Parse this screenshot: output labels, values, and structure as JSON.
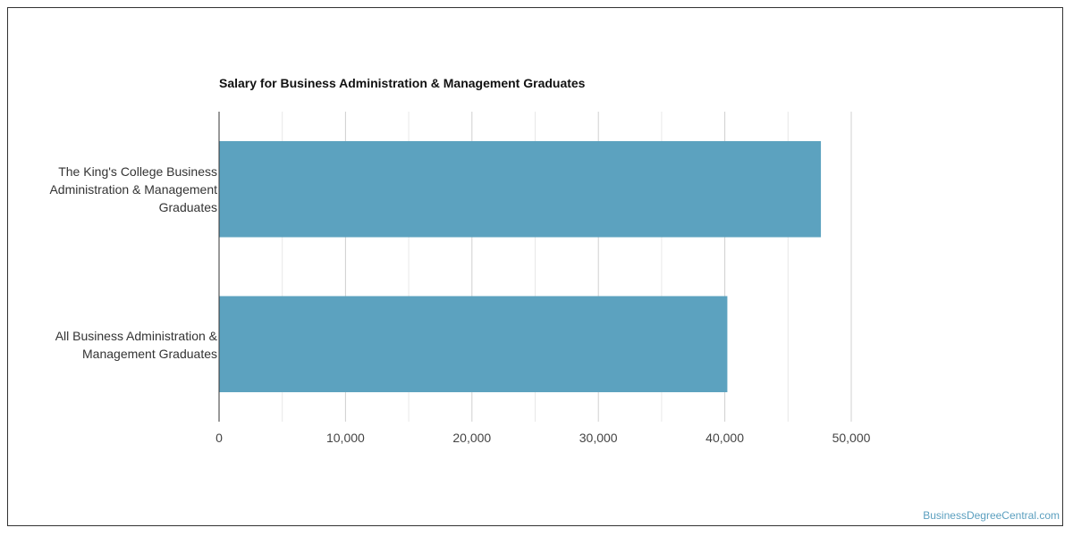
{
  "chart_data": {
    "type": "bar",
    "orientation": "horizontal",
    "title": "Salary for Business Administration & Management Graduates",
    "categories": [
      [
        "The King's College Business",
        "Administration & Management",
        "Graduates"
      ],
      [
        "All Business Administration &",
        "Management Graduates"
      ]
    ],
    "values": [
      47600,
      40200
    ],
    "xlim": [
      0,
      50000
    ],
    "xticks": [
      "0",
      "10,000",
      "20,000",
      "30,000",
      "40,000",
      "50,000"
    ],
    "xtick_values": [
      0,
      10000,
      20000,
      30000,
      40000,
      50000
    ],
    "minor_grid_values": [
      5000,
      15000,
      25000,
      35000,
      45000
    ],
    "grid": true,
    "bar_color": "#5ca2bf",
    "grid_color": "#d0d0d0",
    "axis_color": "#333333"
  },
  "footer": {
    "source_link": "BusinessDegreeCentral.com",
    "link_color": "#5b9fbf"
  }
}
